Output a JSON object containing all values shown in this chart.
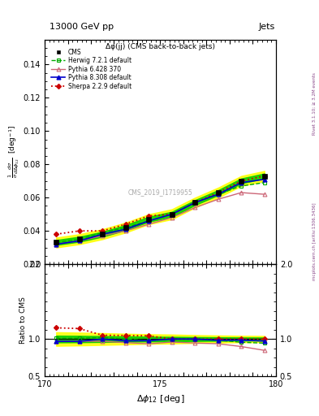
{
  "title_top": "13000 GeV pp",
  "title_right": "Jets",
  "plot_title": "Δφ(jj) (CMS back-to-back jets)",
  "xlabel": "Δφ₁₂ [deg]",
  "ylabel_ratio": "Ratio to CMS",
  "watermark": "CMS_2019_I1719955",
  "right_label": "mcplots.cern.ch [arXiv:1306.3436]",
  "rivet_label": "Rivet 3.1.10; ≥ 3.2M events",
  "xlim": [
    170,
    180
  ],
  "ylim_main": [
    0.02,
    0.155
  ],
  "ylim_ratio": [
    0.5,
    2.0
  ],
  "x_data": [
    170.5,
    171.5,
    172.5,
    173.5,
    174.5,
    175.5,
    176.5,
    177.5,
    178.5,
    179.5
  ],
  "cms_y": [
    0.033,
    0.035,
    0.038,
    0.042,
    0.047,
    0.05,
    0.057,
    0.063,
    0.07,
    0.073
  ],
  "cms_err": [
    0.0015,
    0.0015,
    0.0015,
    0.0015,
    0.0015,
    0.0015,
    0.0015,
    0.0015,
    0.0015,
    0.0015
  ],
  "herwig_y": [
    0.033,
    0.035,
    0.039,
    0.042,
    0.046,
    0.05,
    0.057,
    0.062,
    0.067,
    0.069
  ],
  "pythia6_y": [
    0.032,
    0.034,
    0.037,
    0.04,
    0.044,
    0.048,
    0.054,
    0.059,
    0.063,
    0.062
  ],
  "pythia8_y": [
    0.032,
    0.034,
    0.038,
    0.041,
    0.046,
    0.05,
    0.057,
    0.062,
    0.069,
    0.071
  ],
  "sherpa_y": [
    0.038,
    0.04,
    0.04,
    0.044,
    0.049,
    0.05,
    0.057,
    0.063,
    0.07,
    0.073
  ],
  "herwig_ratio": [
    1.01,
    1.01,
    1.02,
    1.0,
    0.98,
    1.0,
    1.0,
    0.984,
    0.957,
    0.945
  ],
  "pythia6_ratio": [
    0.97,
    0.97,
    0.97,
    0.952,
    0.936,
    0.96,
    0.947,
    0.937,
    0.9,
    0.849
  ],
  "pythia8_ratio": [
    0.97,
    0.97,
    1.0,
    0.976,
    0.979,
    1.0,
    1.0,
    0.984,
    0.986,
    0.973
  ],
  "sherpa_ratio": [
    1.15,
    1.14,
    1.05,
    1.048,
    1.043,
    1.0,
    1.0,
    1.0,
    1.0,
    1.0
  ],
  "cms_color": "#000000",
  "herwig_color": "#00aa00",
  "pythia6_color": "#cc6677",
  "pythia8_color": "#0000cc",
  "sherpa_color": "#cc0000",
  "band_yellow": "#ffff00",
  "band_green": "#00cc00",
  "background_color": "#ffffff"
}
